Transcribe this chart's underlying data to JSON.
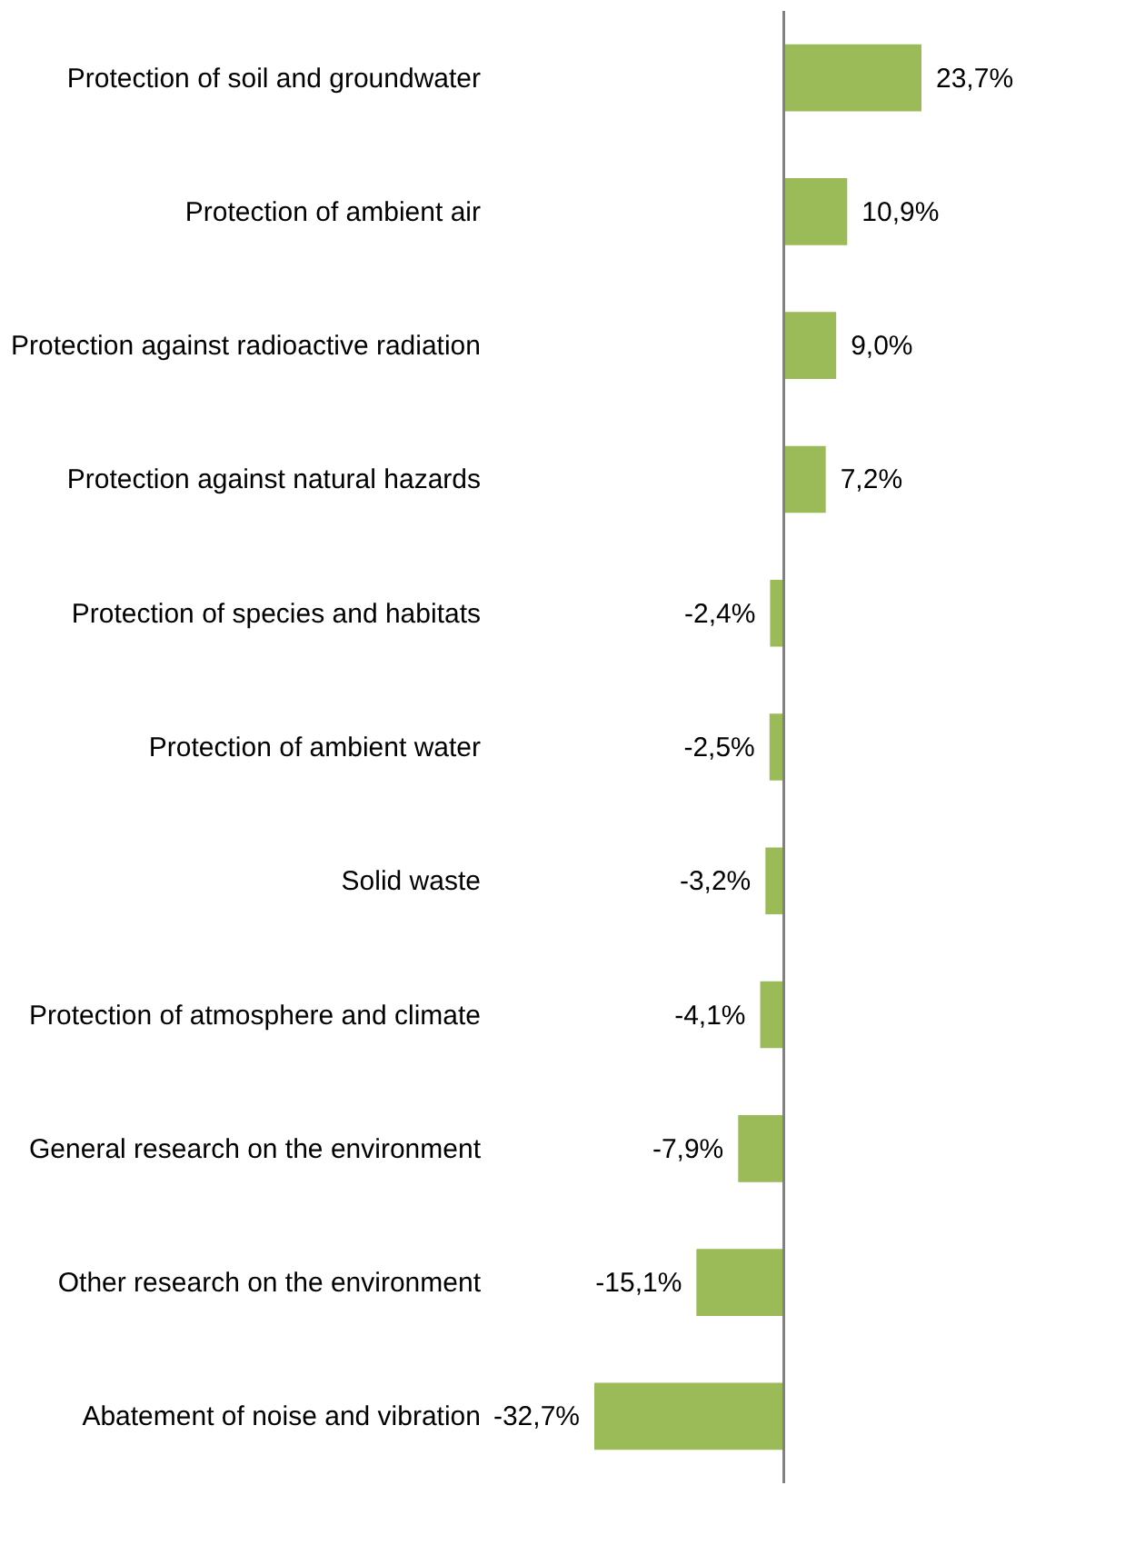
{
  "chart_data": {
    "type": "bar",
    "orientation": "horizontal",
    "categories": [
      "Protection of soil and groundwater",
      "Protection of ambient air",
      "Protection against radioactive radiation",
      "Protection against natural hazards",
      "Protection of species and habitats",
      "Protection of ambient water",
      "Solid waste",
      "Protection of atmosphere and climate",
      "General research on the environment",
      "Other research on the environment",
      "Abatement of noise and vibration"
    ],
    "values": [
      23.7,
      10.9,
      9.0,
      7.2,
      -2.4,
      -2.5,
      -3.2,
      -4.1,
      -7.9,
      -15.1,
      -32.7
    ],
    "value_labels": [
      "23,7%",
      "10,9%",
      "9,0%",
      "7,2%",
      "-2,4%",
      "-2,5%",
      "-3,2%",
      "-4,1%",
      "-7,9%",
      "-15,1%",
      "-32,7%"
    ],
    "color": "#9bbb59"
  }
}
